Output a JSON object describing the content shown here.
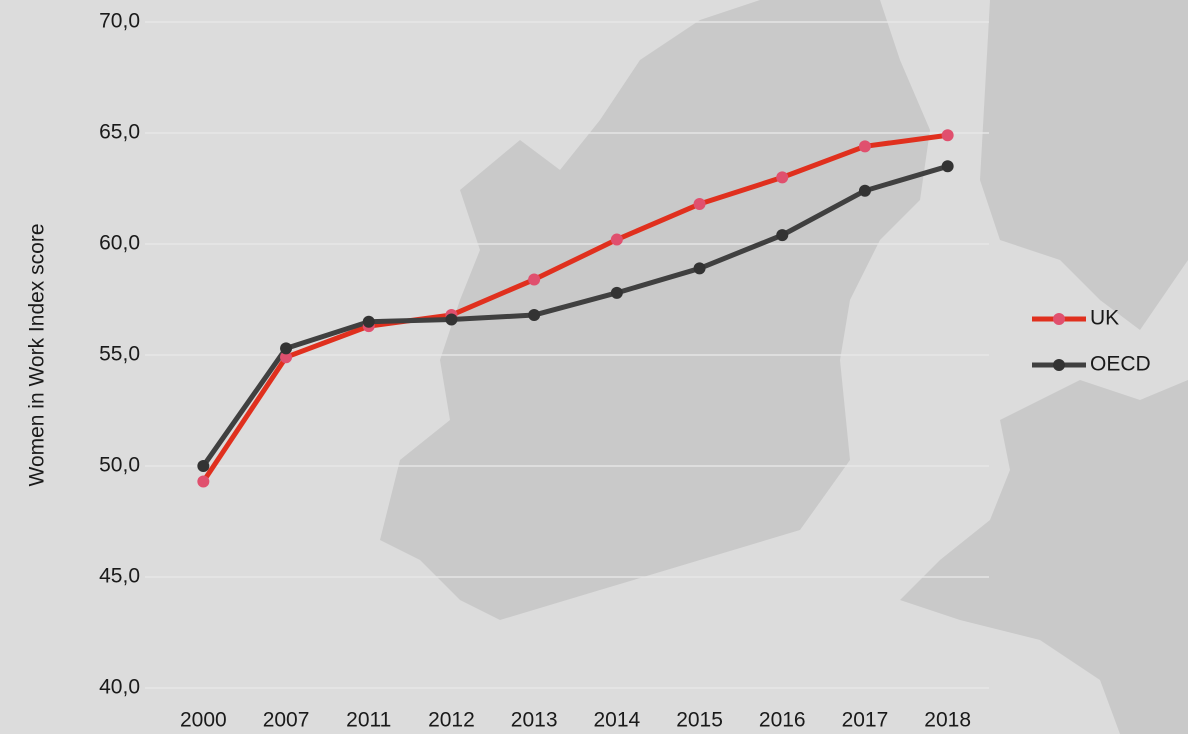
{
  "chart_data": {
    "type": "line",
    "y_axis_label": "Women in Work Index score",
    "categories": [
      "2000",
      "2007",
      "2011",
      "2012",
      "2013",
      "2014",
      "2015",
      "2016",
      "2017",
      "2018"
    ],
    "series": [
      {
        "name": "UK",
        "color": "#e0301e",
        "marker_color": "#e0506e",
        "values": [
          49.3,
          54.9,
          56.3,
          56.8,
          58.4,
          60.2,
          61.8,
          63.0,
          64.4,
          64.9
        ]
      },
      {
        "name": "OECD",
        "color": "#404040",
        "marker_color": "#333333",
        "values": [
          50.0,
          55.3,
          56.5,
          56.6,
          56.8,
          57.8,
          58.9,
          60.4,
          62.4,
          63.5
        ]
      }
    ],
    "ylim": [
      40,
      70
    ],
    "yticks": [
      {
        "value": 40,
        "label": "40,0"
      },
      {
        "value": 45,
        "label": "45,0"
      },
      {
        "value": 50,
        "label": "50,0"
      },
      {
        "value": 55,
        "label": "55,0"
      },
      {
        "value": 60,
        "label": "60,0"
      },
      {
        "value": 65,
        "label": "65,0"
      },
      {
        "value": 70,
        "label": "70,0"
      }
    ],
    "grid": true,
    "legend": "right"
  }
}
